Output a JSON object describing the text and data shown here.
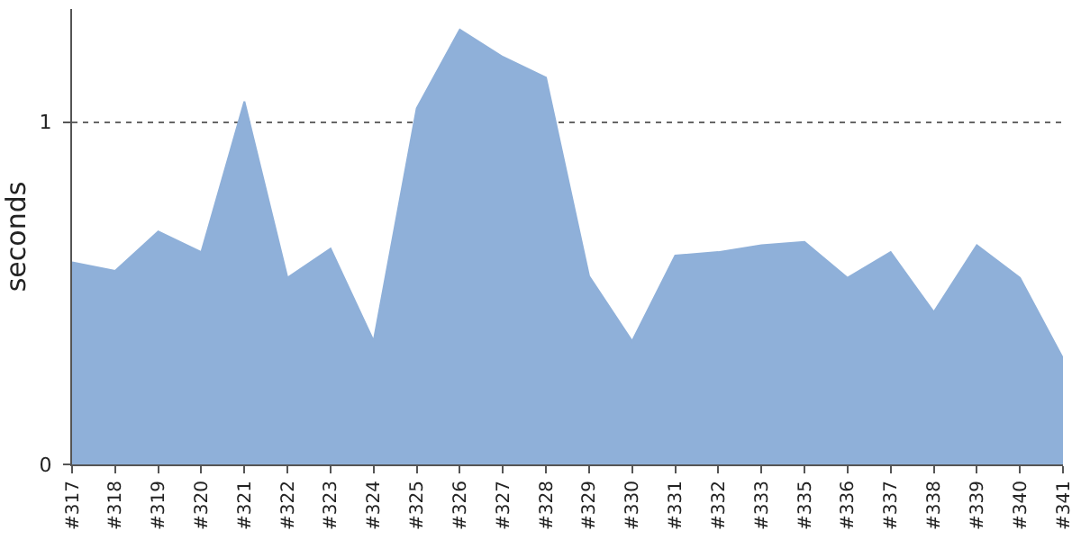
{
  "chart_data": {
    "type": "area",
    "ylabel": "seconds",
    "categories": [
      "#317",
      "#318",
      "#319",
      "#320",
      "#321",
      "#322",
      "#323",
      "#324",
      "#325",
      "#326",
      "#327",
      "#328",
      "#329",
      "#330",
      "#331",
      "#332",
      "#333",
      "#335",
      "#336",
      "#337",
      "#338",
      "#339",
      "#340",
      "#341"
    ],
    "series": [
      {
        "color": "#8fb0d9",
        "values": [
          0.59,
          0.565,
          0.68,
          0.62,
          1.06,
          0.545,
          0.63,
          0.36,
          1.04,
          1.27,
          1.19,
          1.13,
          0.55,
          0.36,
          0.61,
          0.62,
          0.64,
          0.65,
          0.545,
          0.62,
          0.445,
          0.64,
          0.545,
          0.31
        ]
      }
    ],
    "ylim": [
      0,
      1.33
    ],
    "yticks": [
      0,
      1
    ],
    "grid": "y"
  }
}
